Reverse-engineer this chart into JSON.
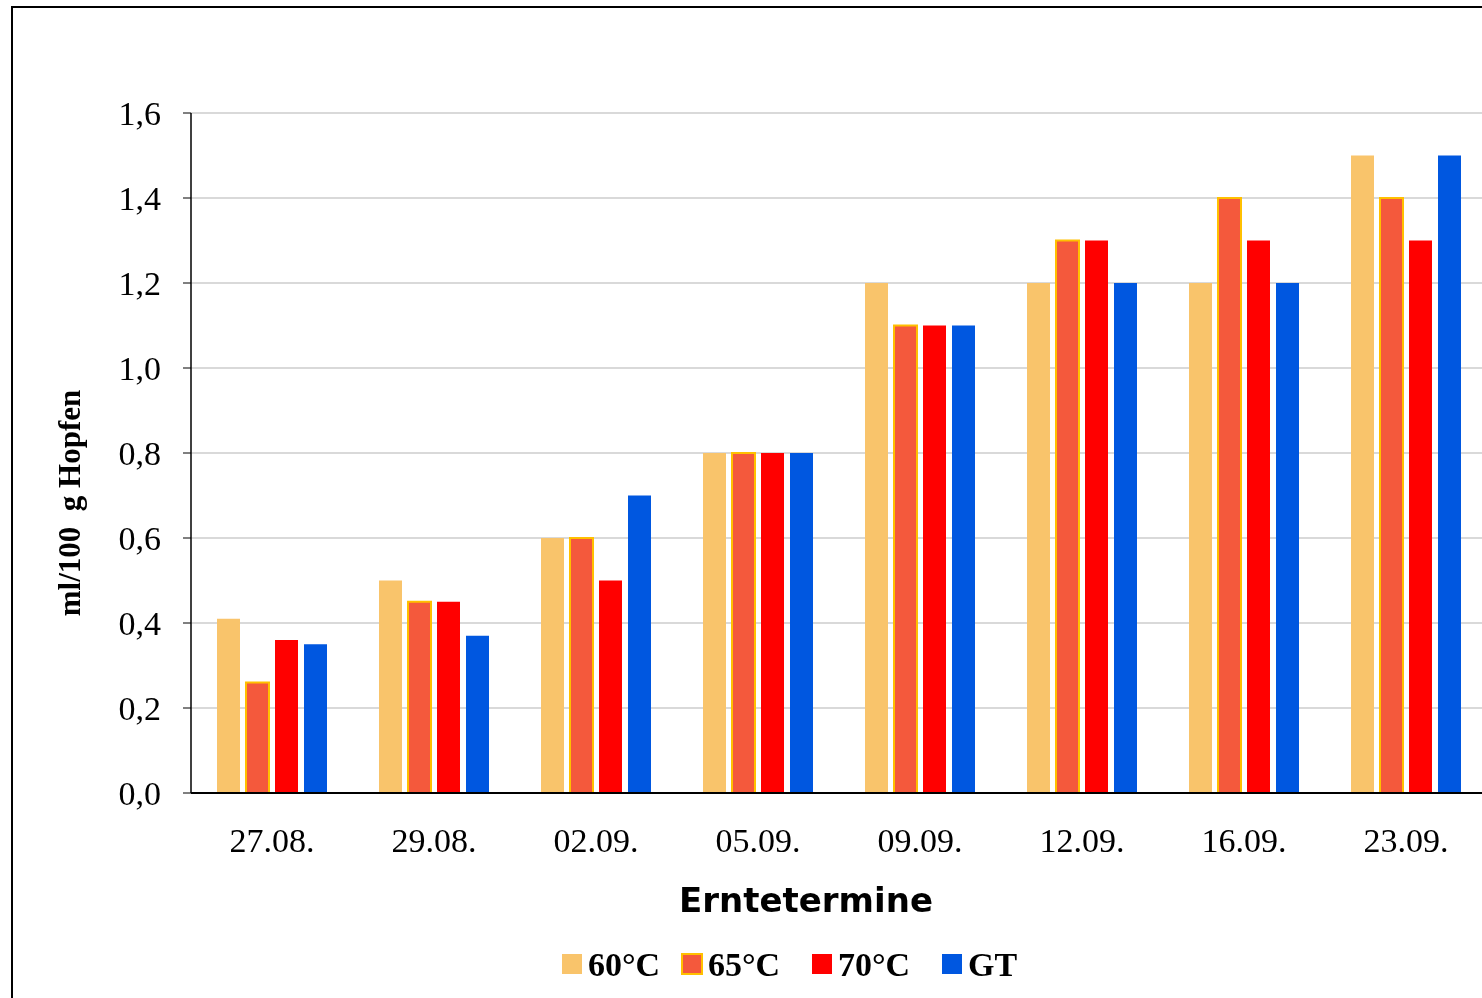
{
  "chart_data": {
    "type": "bar",
    "xlabel": "Erntetermine",
    "ylabel": "ml/100  g Hopfen",
    "categories": [
      "27.08.",
      "29.08.",
      "02.09.",
      "05.09.",
      "09.09.",
      "12.09.",
      "16.09.",
      "23.09."
    ],
    "series": [
      {
        "name": "60°C",
        "color": "#f9c46b",
        "values": [
          0.41,
          0.5,
          0.6,
          0.8,
          1.2,
          1.2,
          1.2,
          1.5
        ]
      },
      {
        "name": "65°C",
        "color": "#f4593c",
        "values": [
          0.26,
          0.45,
          0.6,
          0.8,
          1.1,
          1.3,
          1.4,
          1.4
        ]
      },
      {
        "name": "70°C",
        "color": "#ff0000",
        "values": [
          0.36,
          0.45,
          0.5,
          0.8,
          1.1,
          1.3,
          1.3,
          1.3
        ]
      },
      {
        "name": "GT",
        "color": "#0057e0",
        "values": [
          0.35,
          0.37,
          0.7,
          0.8,
          1.1,
          1.2,
          1.2,
          1.5
        ]
      }
    ],
    "ylim": [
      0,
      1.6
    ],
    "yticks": [
      {
        "value": 0,
        "label": "0,0"
      },
      {
        "value": 0.2,
        "label": "0,2"
      },
      {
        "value": 0.4,
        "label": "0,4"
      },
      {
        "value": 0.6,
        "label": "0,6"
      },
      {
        "value": 0.8,
        "label": "0,8"
      },
      {
        "value": 1,
        "label": "1,0"
      },
      {
        "value": 1.2,
        "label": "1,2"
      },
      {
        "value": 1.4,
        "label": "1,4"
      },
      {
        "value": 1.6,
        "label": "1,6"
      }
    ],
    "grid": "y",
    "legend": "bottom"
  }
}
